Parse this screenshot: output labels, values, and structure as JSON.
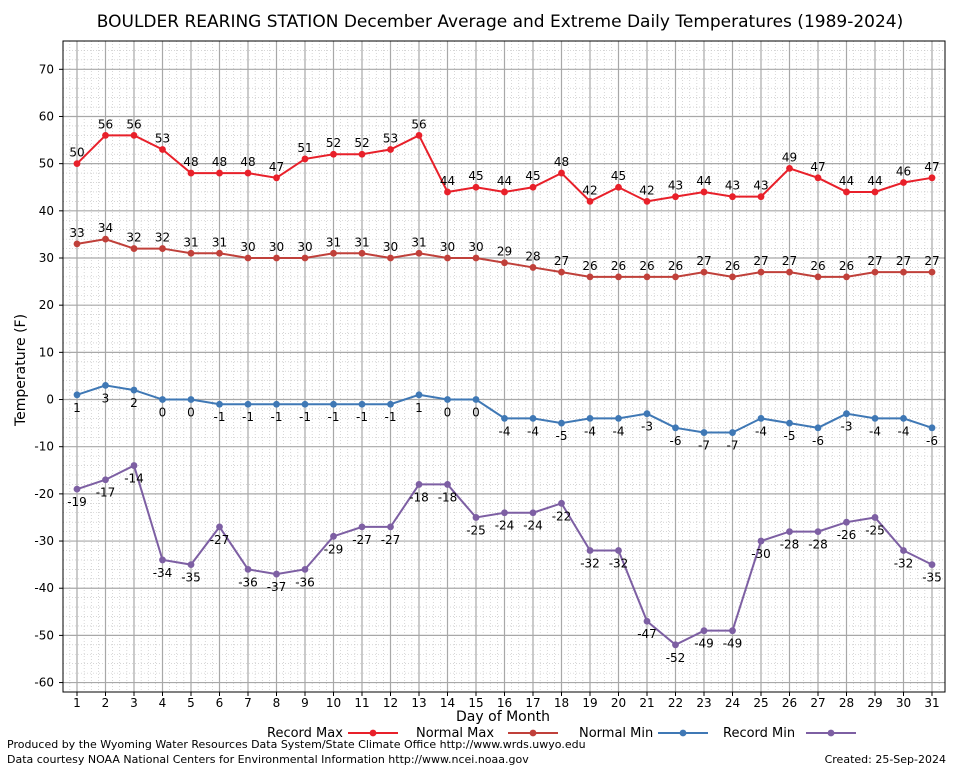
{
  "chart_data": {
    "type": "line",
    "title": "BOULDER REARING STATION December Average and Extreme Daily Temperatures (1989-2024)",
    "xlabel": "Day of Month",
    "ylabel": "Temperature (F)",
    "xlim": [
      1,
      31
    ],
    "ylim": [
      -62,
      76
    ],
    "yticks": [
      70,
      60,
      50,
      40,
      30,
      20,
      10,
      0,
      -10,
      -20,
      -30,
      -40,
      -50,
      -60
    ],
    "x": [
      1,
      2,
      3,
      4,
      5,
      6,
      7,
      8,
      9,
      10,
      11,
      12,
      13,
      14,
      15,
      16,
      17,
      18,
      19,
      20,
      21,
      22,
      23,
      24,
      25,
      26,
      27,
      28,
      29,
      30,
      31
    ],
    "grid": true,
    "legend_position": "bottom",
    "series": [
      {
        "name": "Record Max",
        "color": "#e8202a",
        "label_position": "above",
        "values": [
          50,
          56,
          56,
          53,
          48,
          48,
          48,
          47,
          51,
          52,
          52,
          53,
          56,
          44,
          45,
          44,
          45,
          48,
          42,
          45,
          42,
          43,
          44,
          43,
          43,
          49,
          47,
          44,
          44,
          46,
          47
        ]
      },
      {
        "name": "Normal Max",
        "color": "#c0403a",
        "label_position": "above",
        "values": [
          33,
          34,
          32,
          32,
          31,
          31,
          30,
          30,
          30,
          31,
          31,
          30,
          31,
          30,
          30,
          29,
          28,
          27,
          26,
          26,
          26,
          26,
          27,
          26,
          27,
          27,
          26,
          26,
          27,
          27,
          27
        ]
      },
      {
        "name": "Normal Min",
        "color": "#3f78b5",
        "label_position": "below",
        "values": [
          1,
          3,
          2,
          0,
          0,
          -1,
          -1,
          -1,
          -1,
          -1,
          -1,
          -1,
          1,
          0,
          0,
          -4,
          -4,
          -5,
          -4,
          -4,
          -3,
          -6,
          -7,
          -7,
          -4,
          -5,
          -6,
          -3,
          -4,
          -4,
          -6
        ]
      },
      {
        "name": "Record Min",
        "color": "#7d5fa3",
        "label_position": "below",
        "values": [
          -19,
          -17,
          -14,
          -34,
          -35,
          -27,
          -36,
          -37,
          -36,
          -29,
          -27,
          -27,
          -18,
          -18,
          -25,
          -24,
          -24,
          -22,
          -32,
          -32,
          -47,
          -52,
          -49,
          -49,
          -30,
          -28,
          -28,
          -26,
          -25,
          -32,
          -35
        ]
      }
    ]
  },
  "footer": {
    "produced_by": "Produced by the Wyoming Water Resources Data System/State Climate Office http://www.wrds.uwyo.edu",
    "courtesy": "Data courtesy NOAA National Centers for Environmental Information http://www.ncei.noaa.gov",
    "created": "Created:  25-Sep-2024"
  }
}
